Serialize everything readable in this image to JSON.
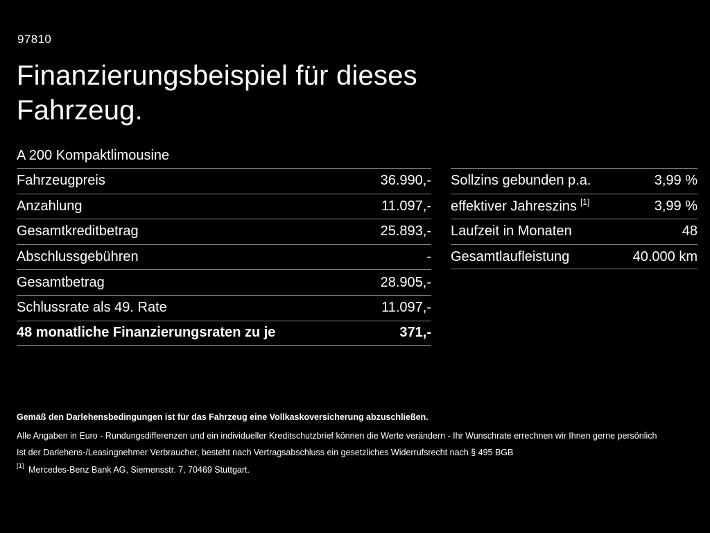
{
  "page": {
    "background": "#000000",
    "text_color": "#ffffff",
    "line_color": "#8c8c8c"
  },
  "header": {
    "code": "97810",
    "title_line1": "Finanzierungsbeispiel für dieses",
    "title_line2": "Fahrzeug.",
    "model": "A 200 Kompaktlimousine"
  },
  "tables": {
    "left": {
      "rows": [
        {
          "label": "Fahrzeugpreis",
          "value": "36.990,-"
        },
        {
          "label": "Anzahlung",
          "value": "11.097,-"
        },
        {
          "label": "Gesamtkreditbetrag",
          "value": "25.893,-"
        },
        {
          "label": "Abschlussgebühren",
          "value": "-"
        },
        {
          "label": "Gesamtbetrag",
          "value": "28.905,-"
        },
        {
          "label": "Schlussrate als 49. Rate",
          "value": "11.097,-"
        },
        {
          "label": "48 monatliche Finanzierungsraten zu je",
          "value": "371,-"
        }
      ]
    },
    "right": {
      "rows": [
        {
          "label": "Sollzins gebunden p.a.",
          "value": "3,99 %"
        },
        {
          "label": "effektiver Jahreszins",
          "sup": "[1]",
          "value": "3,99 %"
        },
        {
          "label": "Laufzeit in Monaten",
          "value": "48"
        },
        {
          "label": "Gesamtlaufleistung",
          "value": "40.000 km"
        }
      ]
    }
  },
  "footer": {
    "line1": "Gemäß den Darlehensbedingungen ist für das Fahrzeug eine Vollkaskoversicherung abzuschließen.",
    "line2": "Alle Angaben in Euro - Rundungsdifferenzen und ein individueller Kreditschutzbrief können die Werte verändern - Ihr Wunschrate errechnen wir Ihnen gerne persönlich",
    "line3": "Ist der Darlehens-/Leasingnehmer Verbraucher, besteht nach Vertragsabschluss ein gesetzliches Widerrufsrecht nach § 495 BGB",
    "footnote_marker": "[1]",
    "footnote_text": "Mercedes-Benz Bank AG, Siemensstr. 7, 70469 Stuttgart."
  }
}
